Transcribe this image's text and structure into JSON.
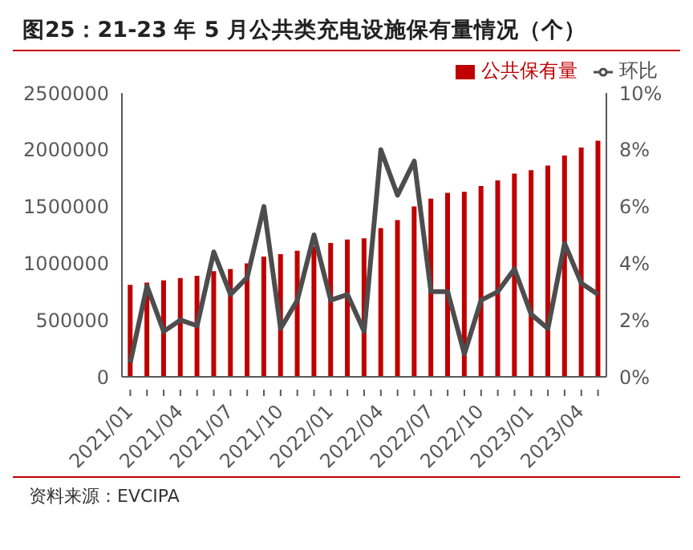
{
  "chart_data": {
    "type": "bar",
    "title": "图25：21-23 年 5 月公共类充电设施保有量情况（个）",
    "categories": [
      "2021/01",
      null,
      null,
      "2021/04",
      null,
      null,
      "2021/07",
      null,
      null,
      "2021/10",
      null,
      null,
      "2022/01",
      null,
      null,
      "2022/04",
      null,
      null,
      "2022/07",
      null,
      null,
      "2022/10",
      null,
      null,
      "2023/01",
      null,
      null,
      "2023/04",
      null
    ],
    "series": [
      {
        "name": "公共保有量",
        "type": "bar",
        "color": "#c00000",
        "values": [
          810000,
          830000,
          850000,
          870000,
          890000,
          930000,
          950000,
          1000000,
          1060000,
          1080000,
          1110000,
          1150000,
          1180000,
          1210000,
          1220000,
          1310000,
          1380000,
          1500000,
          1570000,
          1620000,
          1630000,
          1680000,
          1730000,
          1790000,
          1820000,
          1860000,
          1950000,
          2020000,
          2080000
        ]
      },
      {
        "name": "环比",
        "type": "line",
        "axis": "y2",
        "color": "#4d4d4d",
        "values": [
          0.5,
          3.2,
          1.6,
          2.0,
          1.8,
          4.4,
          2.9,
          3.5,
          6.0,
          1.7,
          2.7,
          5.0,
          2.7,
          2.9,
          1.6,
          8.0,
          6.4,
          7.6,
          3.0,
          3.0,
          0.8,
          2.7,
          3.0,
          3.8,
          2.2,
          1.7,
          4.7,
          3.3,
          2.9
        ]
      }
    ],
    "ylim": [
      0,
      2500000
    ],
    "yticks": [
      0,
      500000,
      1000000,
      1500000,
      2000000,
      2500000
    ],
    "y2lim": [
      0,
      10
    ],
    "y2ticks": [
      {
        "value": 0,
        "label": "0%"
      },
      {
        "value": 2,
        "label": "2%"
      },
      {
        "value": 4,
        "label": "4%"
      },
      {
        "value": 6,
        "label": "6%"
      },
      {
        "value": 8,
        "label": "8%"
      },
      {
        "value": 10,
        "label": "10%"
      }
    ],
    "grid": false,
    "legend": "top right",
    "marker": "none",
    "line_style": "solid",
    "annotations": [
      "资料来源：EVCIPA"
    ]
  }
}
